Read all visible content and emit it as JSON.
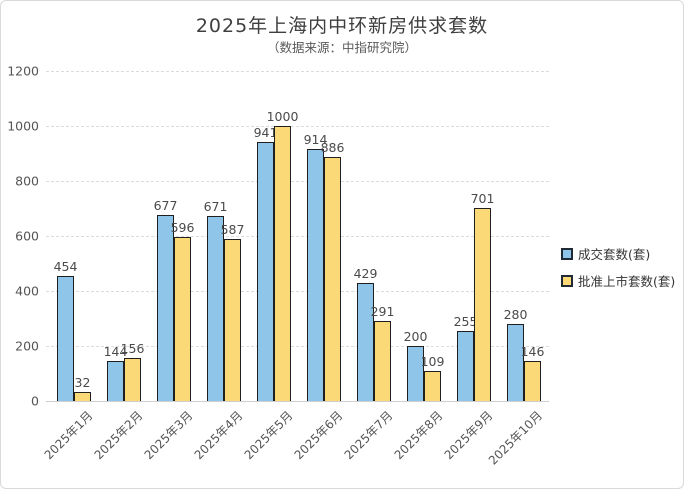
{
  "title": "2025年上海内中环新房供求套数",
  "subtitle": "（数据来源：中指研究院）",
  "colors": {
    "series_blue": "#8EC5E9",
    "series_yellow": "#FAD976",
    "bar_border": "#1f1f1f",
    "grid_line": "#dcdcdc",
    "axis_line": "#cfcfcf",
    "tick_text": "#555555",
    "title_text": "#3f3f3f"
  },
  "chart_data": {
    "type": "bar",
    "title": "2025年上海内中环新房供求套数",
    "subtitle": "（数据来源：中指研究院）",
    "categories": [
      "2025年1月",
      "2025年2月",
      "2025年3月",
      "2025年4月",
      "2025年5月",
      "2025年6月",
      "2025年7月",
      "2025年8月",
      "2025年9月",
      "2025年10月"
    ],
    "series": [
      {
        "name": "成交套数(套)",
        "color_key": "series_blue",
        "values": [
          454,
          144,
          677,
          671,
          941,
          914,
          429,
          200,
          255,
          280
        ]
      },
      {
        "name": "批准上市套数(套)",
        "color_key": "series_yellow",
        "values": [
          32,
          156,
          596,
          587,
          1000,
          886,
          291,
          109,
          701,
          146
        ]
      }
    ],
    "xlabel": "",
    "ylabel": "",
    "ylim": [
      0,
      1200
    ],
    "ytick_step": 200,
    "grid": "dashed-horizontal",
    "legend_position": "right",
    "value_labels": "shown"
  }
}
